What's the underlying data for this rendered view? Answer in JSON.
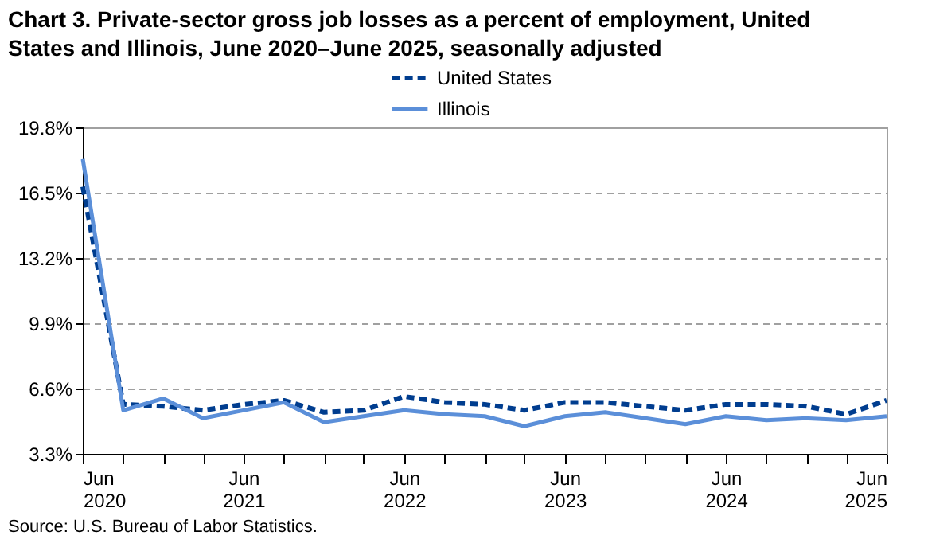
{
  "chart_data": {
    "type": "line",
    "title": "Chart 3. Private-sector gross job losses as a percent of employment, United States and Illinois, June 2020–June 2025, seasonally adjusted",
    "x": [
      "2020-06",
      "2020-09",
      "2020-12",
      "2021-03",
      "2021-06",
      "2021-09",
      "2021-12",
      "2022-03",
      "2022-06",
      "2022-09",
      "2022-12",
      "2023-03",
      "2023-06",
      "2023-09",
      "2023-12",
      "2024-03",
      "2024-06",
      "2024-09",
      "2024-12",
      "2025-03",
      "2025-06"
    ],
    "series": [
      {
        "name": "United States",
        "color": "#003d8f",
        "line_style": "dashed",
        "values": [
          16.8,
          5.8,
          5.7,
          5.5,
          5.8,
          6.0,
          5.4,
          5.5,
          6.2,
          5.9,
          5.8,
          5.5,
          5.9,
          5.9,
          5.7,
          5.5,
          5.8,
          5.8,
          5.7,
          5.3,
          6.0
        ]
      },
      {
        "name": "Illinois",
        "color": "#5b8fd9",
        "line_style": "solid",
        "values": [
          18.2,
          5.5,
          6.1,
          5.1,
          5.5,
          5.9,
          4.9,
          5.2,
          5.5,
          5.3,
          5.2,
          4.7,
          5.2,
          5.4,
          5.1,
          4.8,
          5.2,
          5.0,
          5.1,
          5.0,
          5.2
        ]
      }
    ],
    "xlim": [
      "2020-06",
      "2025-06"
    ],
    "xticks": [
      {
        "value": "2020-06",
        "label": "Jun 2020"
      },
      {
        "value": "2020-09",
        "label": null
      },
      {
        "value": "2020-12",
        "label": null
      },
      {
        "value": "2021-03",
        "label": null
      },
      {
        "value": "2021-06",
        "label": "Jun 2021"
      },
      {
        "value": "2021-09",
        "label": null
      },
      {
        "value": "2021-12",
        "label": null
      },
      {
        "value": "2022-03",
        "label": null
      },
      {
        "value": "2022-06",
        "label": "Jun 2022"
      },
      {
        "value": "2022-09",
        "label": null
      },
      {
        "value": "2022-12",
        "label": null
      },
      {
        "value": "2023-03",
        "label": null
      },
      {
        "value": "2023-06",
        "label": "Jun 2023"
      },
      {
        "value": "2023-09",
        "label": null
      },
      {
        "value": "2023-12",
        "label": null
      },
      {
        "value": "2024-03",
        "label": null
      },
      {
        "value": "2024-06",
        "label": "Jun 2024"
      },
      {
        "value": "2024-09",
        "label": null
      },
      {
        "value": "2024-12",
        "label": null
      },
      {
        "value": "2025-03",
        "label": null
      },
      {
        "value": "2025-06",
        "label": "Jun 2025"
      }
    ],
    "ylim": [
      3.3,
      19.8
    ],
    "yticks": [
      {
        "value": 3.3,
        "label": "3.3%"
      },
      {
        "value": 6.6,
        "label": "6.6%"
      },
      {
        "value": 9.9,
        "label": "9.9%"
      },
      {
        "value": 13.2,
        "label": "13.2%"
      },
      {
        "value": 16.5,
        "label": "16.5%"
      },
      {
        "value": 19.8,
        "label": "19.8%"
      }
    ],
    "grid": "y",
    "legend": "top",
    "marker": "none",
    "annotations": [
      "Source: U.S. Bureau of Labor Statistics."
    ]
  }
}
